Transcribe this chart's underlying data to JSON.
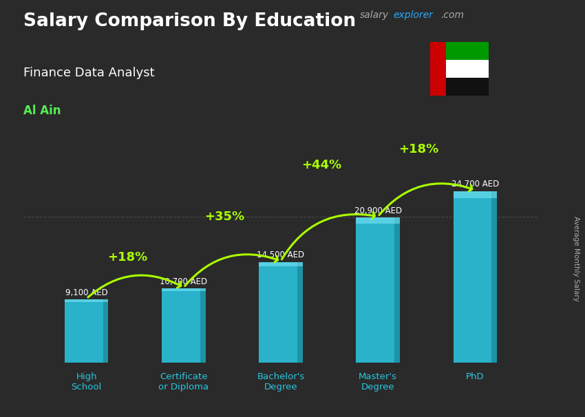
{
  "title": "Salary Comparison By Education",
  "subtitle": "Finance Data Analyst",
  "location": "Al Ain",
  "y_label": "Average Monthly Salary",
  "categories": [
    "High\nSchool",
    "Certificate\nor Diploma",
    "Bachelor's\nDegree",
    "Master's\nDegree",
    "PhD"
  ],
  "values": [
    9100,
    10700,
    14500,
    20900,
    24700
  ],
  "value_labels": [
    "9,100 AED",
    "10,700 AED",
    "14,500 AED",
    "20,900 AED",
    "24,700 AED"
  ],
  "pct_labels": [
    "+18%",
    "+35%",
    "+44%",
    "+18%"
  ],
  "bar_color": "#29c6e0",
  "bar_shadow": "#1a8fa0",
  "bg_color": "#2a2a2a",
  "title_color": "#ffffff",
  "subtitle_color": "#ffffff",
  "location_color": "#55ee55",
  "value_color": "#ffffff",
  "pct_color": "#aaff00",
  "arrow_color": "#aaff00",
  "ylim": [
    0,
    30000
  ],
  "bar_width": 0.45
}
